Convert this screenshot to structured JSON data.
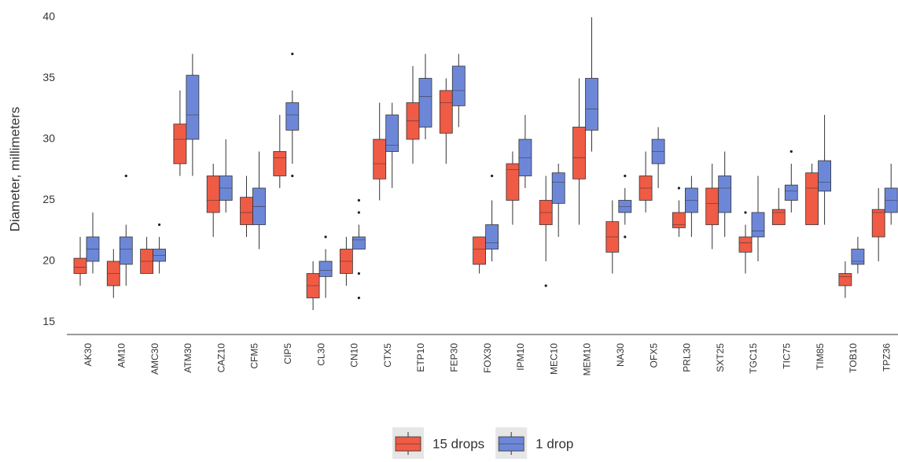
{
  "chart_data": {
    "type": "box",
    "y_label": "Diameter, millimeters",
    "categories": [
      "AK30",
      "AM10",
      "AMC30",
      "ATM30",
      "CAZ10",
      "CFM5",
      "CIP5",
      "CL30",
      "CN10",
      "CTX5",
      "ETP10",
      "FEP30",
      "FOX30",
      "IPM10",
      "MEC10",
      "MEM10",
      "NA30",
      "OFX5",
      "PRL30",
      "SXT25",
      "TGC15",
      "TIC75",
      "TIM85",
      "TOB10",
      "TPZ36"
    ],
    "ylim": [
      14,
      40
    ],
    "yticks": [
      15,
      20,
      25,
      30,
      35,
      40
    ],
    "grid": false,
    "legend": "bottom",
    "series": [
      {
        "name": "15 drops",
        "color": "#ef5b45",
        "values": [
          {
            "low": 18,
            "q1": 19,
            "median": 19.5,
            "q3": 20.25,
            "high": 22
          },
          {
            "low": 17,
            "q1": 18,
            "median": 19,
            "q3": 20,
            "high": 21
          },
          {
            "low": 19,
            "q1": 19,
            "median": 20,
            "q3": 21,
            "high": 22
          },
          {
            "low": 27,
            "q1": 28,
            "median": 30,
            "q3": 31.25,
            "high": 34
          },
          {
            "low": 22,
            "q1": 24,
            "median": 25,
            "q3": 27,
            "high": 28
          },
          {
            "low": 22,
            "q1": 23,
            "median": 24,
            "q3": 25.25,
            "high": 27
          },
          {
            "low": 26,
            "q1": 27,
            "median": 28.5,
            "q3": 29,
            "high": 32
          },
          {
            "low": 16,
            "q1": 17,
            "median": 18,
            "q3": 19,
            "high": 20
          },
          {
            "low": 18,
            "q1": 19,
            "median": 20,
            "q3": 21,
            "high": 22
          },
          {
            "low": 25,
            "q1": 26.75,
            "median": 28,
            "q3": 30,
            "high": 33
          },
          {
            "low": 28,
            "q1": 30,
            "median": 31.5,
            "q3": 33,
            "high": 36
          },
          {
            "low": 28,
            "q1": 30.5,
            "median": 33,
            "q3": 34,
            "high": 35
          },
          {
            "low": 19,
            "q1": 19.75,
            "median": 21,
            "q3": 22,
            "high": 22
          },
          {
            "low": 23,
            "q1": 25,
            "median": 27.5,
            "q3": 28,
            "high": 29
          },
          {
            "low": 20,
            "q1": 23,
            "median": 24,
            "q3": 25,
            "high": 27,
            "outliers": [
              18
            ]
          },
          {
            "low": 23,
            "q1": 26.75,
            "median": 28.5,
            "q3": 31,
            "high": 35
          },
          {
            "low": 19,
            "q1": 20.75,
            "median": 22,
            "q3": 23.25,
            "high": 25
          },
          {
            "low": 24,
            "q1": 25,
            "median": 26,
            "q3": 27,
            "high": 29
          },
          {
            "low": 22,
            "q1": 22.75,
            "median": 23,
            "q3": 24,
            "high": 25,
            "outliers": [
              26
            ]
          },
          {
            "low": 21,
            "q1": 23,
            "median": 24.75,
            "q3": 26,
            "high": 28
          },
          {
            "low": 19,
            "q1": 20.75,
            "median": 21.5,
            "q3": 22,
            "high": 23,
            "outliers": [
              24
            ]
          },
          {
            "low": 23,
            "q1": 23,
            "median": 24,
            "q3": 24.25,
            "high": 26
          },
          {
            "low": 23,
            "q1": 23,
            "median": 26,
            "q3": 27.25,
            "high": 28
          },
          {
            "low": 17,
            "q1": 18,
            "median": 18.75,
            "q3": 19,
            "high": 20
          },
          {
            "low": 20,
            "q1": 22,
            "median": 24,
            "q3": 24.25,
            "high": 26
          }
        ]
      },
      {
        "name": "1 drop",
        "color": "#6d87d8",
        "values": [
          {
            "low": 19,
            "q1": 20,
            "median": 21,
            "q3": 22,
            "high": 24
          },
          {
            "low": 18,
            "q1": 19.75,
            "median": 21,
            "q3": 22,
            "high": 23,
            "outliers": [
              27
            ]
          },
          {
            "low": 19,
            "q1": 20,
            "median": 20.5,
            "q3": 21,
            "high": 22,
            "outliers": [
              23
            ]
          },
          {
            "low": 27,
            "q1": 30,
            "median": 32,
            "q3": 35.25,
            "high": 37
          },
          {
            "low": 24,
            "q1": 25,
            "median": 26,
            "q3": 27,
            "high": 30
          },
          {
            "low": 21,
            "q1": 23,
            "median": 24.5,
            "q3": 26,
            "high": 29
          },
          {
            "low": 28,
            "q1": 30.75,
            "median": 32,
            "q3": 33,
            "high": 34,
            "outliers": [
              37,
              27
            ]
          },
          {
            "low": 17,
            "q1": 18.75,
            "median": 19.25,
            "q3": 20,
            "high": 21,
            "outliers": [
              22
            ]
          },
          {
            "low": 21,
            "q1": 21,
            "median": 21.75,
            "q3": 22,
            "high": 23,
            "outliers": [
              25,
              24,
              19,
              17
            ]
          },
          {
            "low": 26,
            "q1": 29,
            "median": 29.5,
            "q3": 32,
            "high": 33
          },
          {
            "low": 30,
            "q1": 31,
            "median": 33.5,
            "q3": 35,
            "high": 37
          },
          {
            "low": 31,
            "q1": 32.75,
            "median": 34,
            "q3": 36,
            "high": 37
          },
          {
            "low": 20,
            "q1": 21,
            "median": 21.5,
            "q3": 23,
            "high": 25,
            "outliers": [
              27
            ]
          },
          {
            "low": 26,
            "q1": 27,
            "median": 28.5,
            "q3": 30,
            "high": 32
          },
          {
            "low": 22,
            "q1": 24.75,
            "median": 26.5,
            "q3": 27.25,
            "high": 28
          },
          {
            "low": 29,
            "q1": 30.75,
            "median": 32.5,
            "q3": 35,
            "high": 40
          },
          {
            "low": 23,
            "q1": 24,
            "median": 24.5,
            "q3": 25,
            "high": 26,
            "outliers": [
              27,
              22
            ]
          },
          {
            "low": 26,
            "q1": 28,
            "median": 29,
            "q3": 30,
            "high": 31
          },
          {
            "low": 22,
            "q1": 24,
            "median": 25,
            "q3": 26,
            "high": 27
          },
          {
            "low": 22,
            "q1": 24,
            "median": 26,
            "q3": 27,
            "high": 29
          },
          {
            "low": 20,
            "q1": 22,
            "median": 22.5,
            "q3": 24,
            "high": 27
          },
          {
            "low": 24,
            "q1": 25,
            "median": 25.75,
            "q3": 26.25,
            "high": 28,
            "outliers": [
              29
            ]
          },
          {
            "low": 23,
            "q1": 25.75,
            "median": 26.5,
            "q3": 28.25,
            "high": 32
          },
          {
            "low": 19,
            "q1": 19.75,
            "median": 20,
            "q3": 21,
            "high": 22
          },
          {
            "low": 23,
            "q1": 24,
            "median": 25,
            "q3": 26,
            "high": 28
          }
        ]
      }
    ]
  }
}
